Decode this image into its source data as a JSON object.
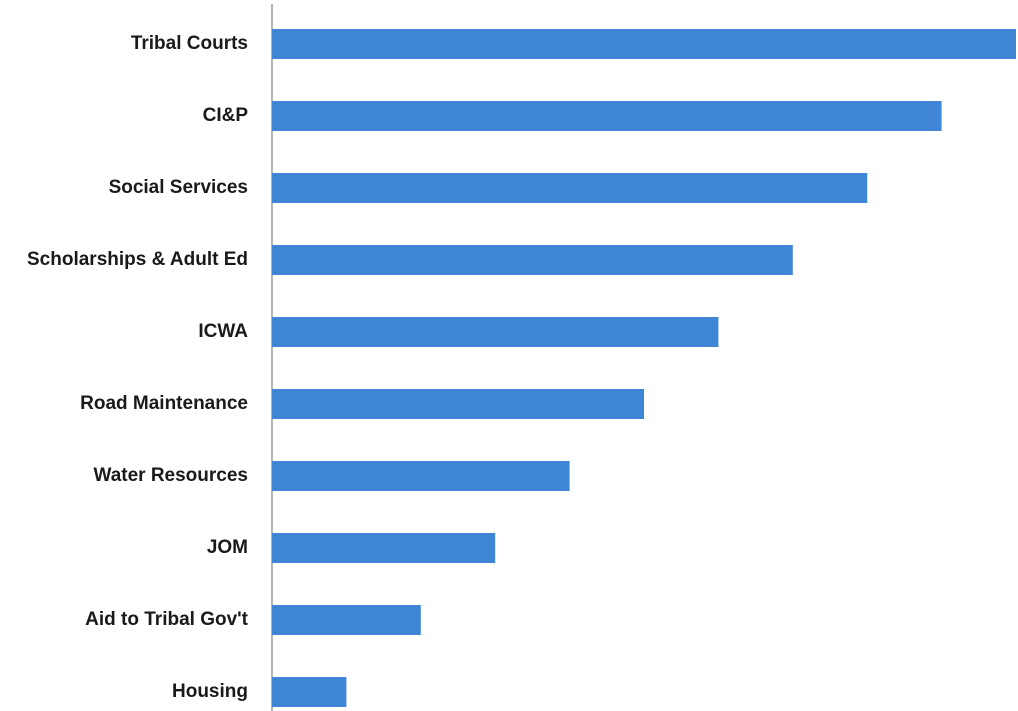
{
  "chart_data": {
    "type": "hbar",
    "categories": [
      "Tribal Courts",
      "CI&P",
      "Social Services",
      "Scholarships & Adult Ed",
      "ICWA",
      "Road Maintenance",
      "Water Resources",
      "JOM",
      "Aid to Tribal Gov't",
      "Housing"
    ],
    "values": [
      10,
      9,
      8,
      7,
      6,
      5,
      4,
      3,
      2,
      1
    ],
    "color": "#3f86d6",
    "xlim": [
      0,
      10
    ]
  }
}
